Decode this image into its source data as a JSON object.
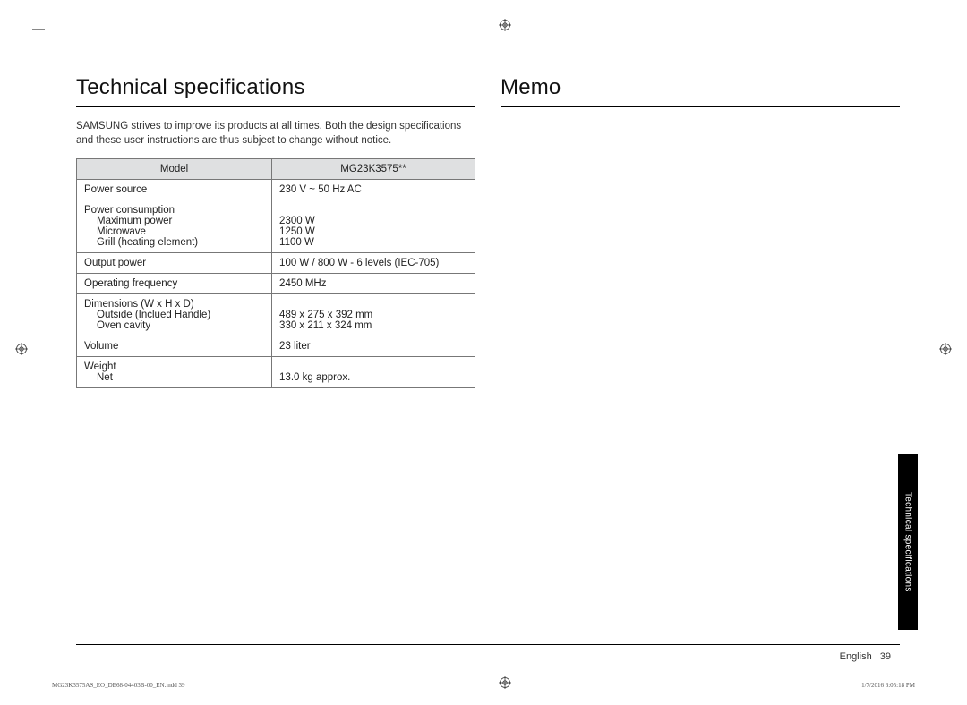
{
  "headings": {
    "left": "Technical specifications",
    "right": "Memo"
  },
  "intro": "SAMSUNG strives to improve its products at all times. Both the design specifications and these user instructions are thus subject to change without notice.",
  "table": {
    "header": {
      "col1": "Model",
      "col2": "MG23K3575**"
    },
    "rows": [
      {
        "label": "Power source",
        "sub": [],
        "value": "230 V ~ 50 Hz AC",
        "valsub": []
      },
      {
        "label": "Power consumption",
        "sub": [
          "Maximum power",
          "Microwave",
          "Grill (heating element)"
        ],
        "value": "",
        "valsub": [
          "2300 W",
          "1250 W",
          "1100 W"
        ]
      },
      {
        "label": "Output power",
        "sub": [],
        "value": "100 W / 800 W - 6 levels (IEC-705)",
        "valsub": []
      },
      {
        "label": "Operating frequency",
        "sub": [],
        "value": "2450 MHz",
        "valsub": []
      },
      {
        "label": "Dimensions (W x H x D)",
        "sub": [
          "Outside (Inclued Handle)",
          "Oven cavity"
        ],
        "value": "",
        "valsub": [
          "489 x 275 x 392 mm",
          "330 x 211 x 324 mm"
        ]
      },
      {
        "label": "Volume",
        "sub": [],
        "value": "23 liter",
        "valsub": []
      },
      {
        "label": "Weight",
        "sub": [
          "Net"
        ],
        "value": "",
        "valsub": [
          "13.0 kg approx."
        ]
      }
    ]
  },
  "sideTab": "Technical specifications",
  "footer": {
    "lang": "English",
    "page": "39"
  },
  "indd": {
    "left": "MG23K3575AS_EO_DE68-04403B-00_EN.indd   39",
    "right": "1/7/2016   6:05:18 PM"
  },
  "colors": {
    "text": "#222222",
    "border": "#777777",
    "headerBg": "#dfe0e1",
    "tabBg": "#000000",
    "tabText": "#ffffff"
  }
}
